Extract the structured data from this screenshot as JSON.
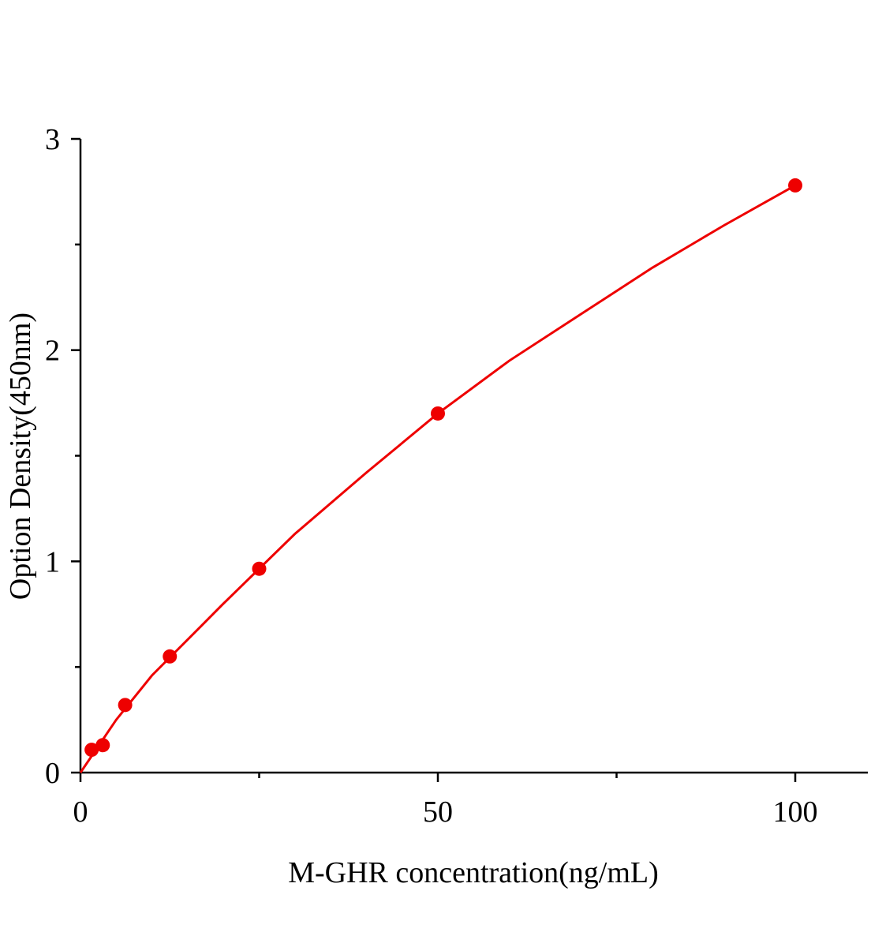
{
  "chart_data": {
    "type": "scatter",
    "x_label": "M-GHR concentration(ng/mL)",
    "y_label": "Option Density(450nm)",
    "xlim": [
      0,
      110
    ],
    "ylim": [
      0,
      3
    ],
    "xticks": [
      0,
      50,
      100
    ],
    "yticks": [
      0,
      1,
      2,
      3
    ],
    "xminor": [
      25,
      75
    ],
    "yminor": [
      0.5,
      1.5,
      2.5
    ],
    "grid": false,
    "series": [
      {
        "color": "#ee0000",
        "kind": "points",
        "x": [
          1.56,
          3.12,
          6.25,
          12.5,
          25,
          50,
          100
        ],
        "values": [
          0.108,
          0.13,
          0.32,
          0.55,
          0.965,
          1.7,
          2.78
        ]
      },
      {
        "color": "#ee0000",
        "kind": "curve",
        "x": [
          0,
          5,
          10,
          20,
          30,
          40,
          50,
          60,
          70,
          80,
          90,
          100
        ],
        "values": [
          0,
          0.25,
          0.46,
          0.8,
          1.13,
          1.42,
          1.7,
          1.95,
          2.17,
          2.39,
          2.59,
          2.78
        ]
      }
    ]
  }
}
